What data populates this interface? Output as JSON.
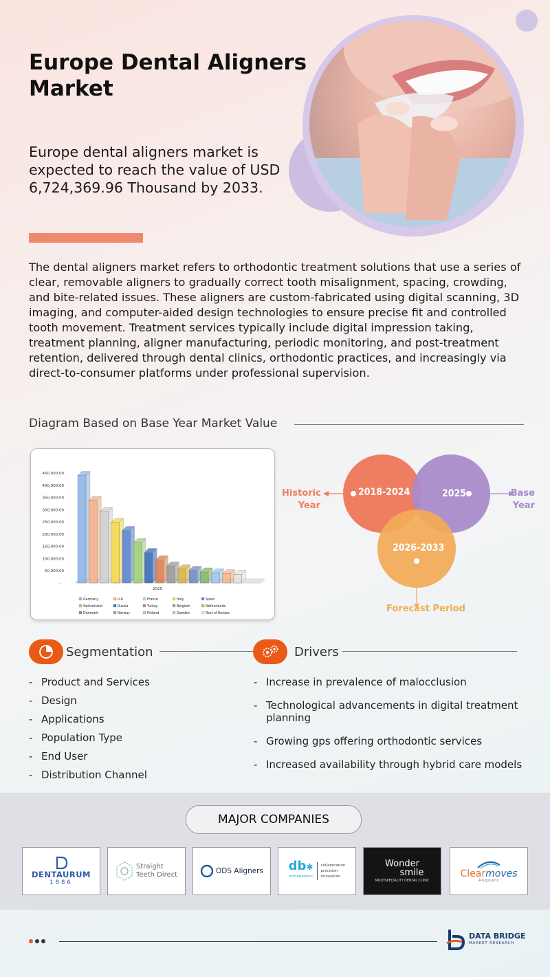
{
  "header": {
    "title_line1": "Europe Dental Aligners",
    "title_line2": "Market",
    "lead": "Europe dental aligners market is expected to reach the value of USD 6,724,369.96 Thousand by 2033.",
    "description": "The dental aligners market refers to orthodontic treatment solutions that use a series of clear, removable aligners to gradually correct tooth misalignment, spacing, crowding, and bite-related issues. These aligners are custom-fabricated using digital scanning, 3D imaging, and computer-aided design technologies to ensure precise fit and controlled tooth movement. Treatment services typically include digital impression taking, treatment planning, aligner manufacturing, periodic monitoring, and post-treatment retention, delivered through dental clinics, orthodontic practices, and increasingly via direct-to-consumer platforms under professional supervision."
  },
  "colors": {
    "accent_orange": "#ea5a16",
    "salmon": "#ee8970",
    "venn_historic": "#ef7d62",
    "venn_base": "#a98bc9",
    "venn_forecast": "#f3aa57"
  },
  "diagram": {
    "heading": "Diagram Based on Base Year Market Value",
    "historic_range": "2018-2024",
    "base_year_value": "2025",
    "forecast_range": "2026-2033",
    "historic_label_1": "Historic",
    "historic_label_2": "Year",
    "base_label_1": "Base",
    "base_label_2": "Year",
    "forecast_label": "Forecast Period"
  },
  "chart_data": {
    "type": "bar",
    "x_label_category": "2025",
    "yticks": [
      "50,000.00",
      "100,000.00",
      "150,000.00",
      "200,000.00",
      "250,000.00",
      "300,000.00",
      "350,000.00",
      "400,000.00",
      "450,000.00"
    ],
    "ylim": [
      0,
      450000
    ],
    "series": [
      {
        "name": "Germany",
        "value": 440000,
        "color": "#8eb6e6"
      },
      {
        "name": "U.K.",
        "value": 338000,
        "color": "#f2b08a"
      },
      {
        "name": "France",
        "value": 292000,
        "color": "#cfcfcf"
      },
      {
        "name": "Italy",
        "value": 248000,
        "color": "#f5d84a"
      },
      {
        "name": "Spain",
        "value": 215000,
        "color": "#5a86d2"
      },
      {
        "name": "Switzerland",
        "value": 165000,
        "color": "#9fcf7a"
      },
      {
        "name": "Russia",
        "value": 125000,
        "color": "#3d6ab8"
      },
      {
        "name": "Turkey",
        "value": 95000,
        "color": "#d98150"
      },
      {
        "name": "Belgium",
        "value": 70000,
        "color": "#9a9a9a"
      },
      {
        "name": "Netherlands",
        "value": 58000,
        "color": "#d6b443"
      },
      {
        "name": "Denmark",
        "value": 52000,
        "color": "#6f8fc4"
      },
      {
        "name": "Norway",
        "value": 45000,
        "color": "#86b867"
      },
      {
        "name": "Finland",
        "value": 42000,
        "color": "#9dc8ee"
      },
      {
        "name": "Sweden",
        "value": 38000,
        "color": "#f5b88c"
      },
      {
        "name": "Rest of Europe",
        "value": 35000,
        "color": "#e3e3e3"
      }
    ],
    "legend_position": "bottom",
    "grid": false
  },
  "segmentation": {
    "heading": "Segmentation",
    "items": [
      "Product and Services",
      "Design",
      "Applications",
      "Population Type",
      "End User",
      "Distribution Channel"
    ]
  },
  "drivers": {
    "heading": "Drivers",
    "items": [
      "Increase in prevalence of malocclusion",
      "Technological advancements in digital treatment planning",
      "Growing gps offering orthodontic services",
      "Increased availability through hybrid care models"
    ]
  },
  "companies": {
    "heading": "MAJOR COMPANIES",
    "dentaurum_name": "DENTAURUM",
    "dentaurum_year": "1886",
    "straight_line1": "Straight",
    "straight_line2": "Teeth Direct",
    "ods": "ODS Aligners",
    "db_mark": "db",
    "db_sub": "orthodontics",
    "db_tag1": "collaboration",
    "db_tag2": "precision",
    "db_tag3": "innovation",
    "wonder_1": "Wonder",
    "wonder_2": "smile",
    "wonder_sub": "MULTISPECIALITY DENTAL CLINIC",
    "clear_1": "Clear",
    "clear_2": "moves",
    "clear_sub": "Aligners"
  },
  "footer": {
    "brand_line1": "DATA BRIDGE",
    "brand_line2": "MARKET RESEARCH"
  }
}
